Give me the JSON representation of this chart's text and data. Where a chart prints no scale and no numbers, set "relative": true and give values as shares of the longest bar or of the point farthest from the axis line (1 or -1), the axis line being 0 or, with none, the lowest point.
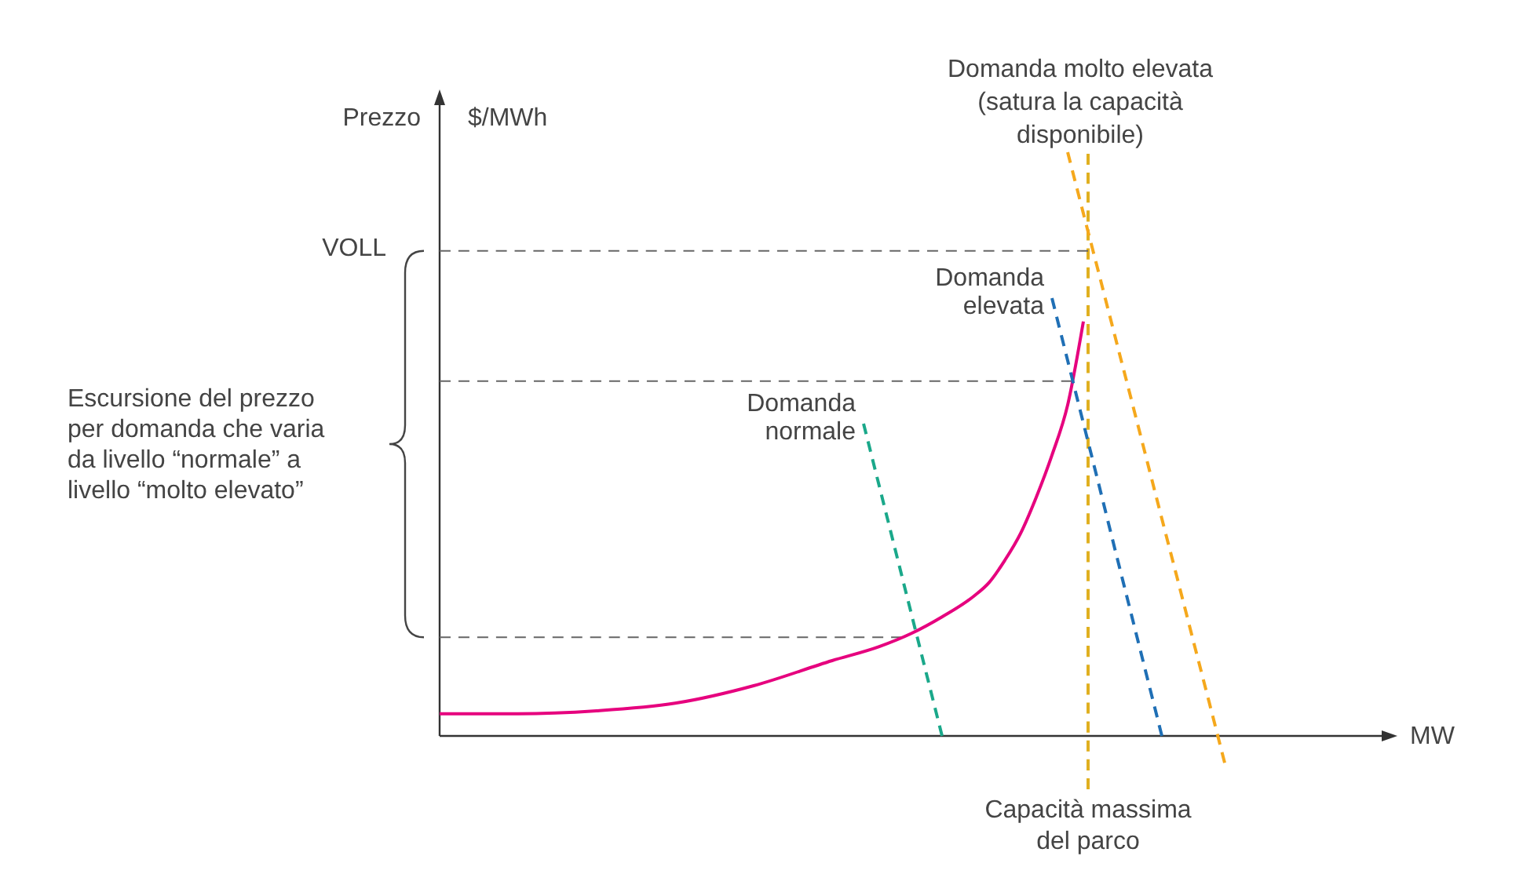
{
  "chart_data": {
    "type": "line",
    "relative": true,
    "ylabel": "Prezzo",
    "xlabel": "MW",
    "categories": [
      null,
      null,
      null,
      null,
      null,
      null,
      null,
      null,
      null,
      null,
      null,
      null,
      null,
      null,
      null,
      null,
      null,
      null,
      null,
      null,
      null,
      null,
      null,
      null,
      null,
      null,
      null,
      null,
      null,
      null,
      null,
      null,
      null,
      null,
      null,
      null,
      null,
      null,
      null,
      null,
      null,
      null,
      null,
      null,
      null,
      null,
      null,
      null,
      null,
      null,
      null,
      null,
      null,
      null,
      null,
      null,
      null,
      null,
      null,
      null,
      null
    ],
    "series": [
      {
        "color": "#e6007e",
        "line_style": "solid",
        "values": [
          0.038,
          null,
          null,
          null,
          null,
          0.038,
          null,
          null,
          null,
          null,
          0.043,
          null,
          null,
          null,
          null,
          0.056,
          null,
          null,
          null,
          null,
          0.086,
          null,
          null,
          null,
          null,
          0.129,
          null,
          null,
          0.153,
          null,
          0.175,
          null,
          0.204,
          null,
          0.239,
          0.263,
          0.301,
          0.347,
          0.409,
          0.481,
          0.567,
          0.71,
          null,
          null,
          null,
          null,
          null,
          null,
          null,
          null,
          null,
          null,
          null,
          null,
          null,
          null,
          null,
          null,
          null,
          null,
          null
        ]
      },
      {
        "name": "Domanda normale",
        "color": "#1aa88a",
        "line_style": "dashed",
        "values": [
          null,
          null,
          null,
          null,
          null,
          null,
          null,
          null,
          null,
          null,
          null,
          null,
          null,
          null,
          null,
          null,
          null,
          null,
          null,
          null,
          null,
          null,
          null,
          null,
          null,
          null,
          null,
          0.535,
          0.428,
          0.321,
          0.214,
          0.107,
          0,
          null,
          null,
          null,
          null,
          null,
          null,
          null,
          null,
          null,
          null,
          null,
          null,
          null,
          null,
          null,
          null,
          null,
          null,
          null,
          null,
          null,
          null,
          null,
          null,
          null,
          null,
          null,
          null
        ]
      },
      {
        "name": "Domanda elevata",
        "color": "#1f6fb5",
        "line_style": "dashed",
        "values": [
          null,
          null,
          null,
          null,
          null,
          null,
          null,
          null,
          null,
          null,
          null,
          null,
          null,
          null,
          null,
          null,
          null,
          null,
          null,
          null,
          null,
          null,
          null,
          null,
          null,
          null,
          null,
          null,
          null,
          null,
          null,
          null,
          null,
          null,
          null,
          null,
          null,
          null,
          null,
          0.75,
          0.643,
          0.536,
          0.429,
          0.321,
          0.214,
          0.107,
          0,
          null,
          null,
          null,
          null,
          null,
          null,
          null,
          null,
          null,
          null,
          null,
          null,
          null,
          null
        ]
      },
      {
        "name": "Domanda molto elevata (satura la capacità disponibile)",
        "color": "#f5a81c",
        "line_style": "dashed",
        "values": [
          null,
          null,
          null,
          null,
          null,
          null,
          null,
          null,
          null,
          null,
          null,
          null,
          null,
          null,
          null,
          null,
          null,
          null,
          null,
          null,
          null,
          null,
          null,
          null,
          null,
          null,
          null,
          null,
          null,
          null,
          null,
          null,
          null,
          null,
          null,
          null,
          null,
          null,
          null,
          null,
          1.0,
          0.895,
          0.791,
          0.686,
          0.582,
          0.477,
          0.372,
          0.268,
          0.163,
          0.059,
          -0.046,
          null,
          null,
          null,
          null,
          null,
          null,
          null,
          null,
          null,
          null
        ]
      }
    ],
    "ref_lines": [
      {
        "axis": "y",
        "value": 0.831,
        "label": "VOLL",
        "color": "#666666",
        "line_style": "dashed"
      },
      {
        "axis": "y",
        "value": 0.608,
        "color": "#666666",
        "line_style": "dashed"
      },
      {
        "axis": "y",
        "value": 0.169,
        "color": "#666666",
        "line_style": "dashed"
      }
    ],
    "annotations": [
      "$/MWh",
      "Escursione del prezzo per domanda che varia da livello “normale” a livello “molto elevato”",
      "Capacità massima del parco"
    ]
  }
}
